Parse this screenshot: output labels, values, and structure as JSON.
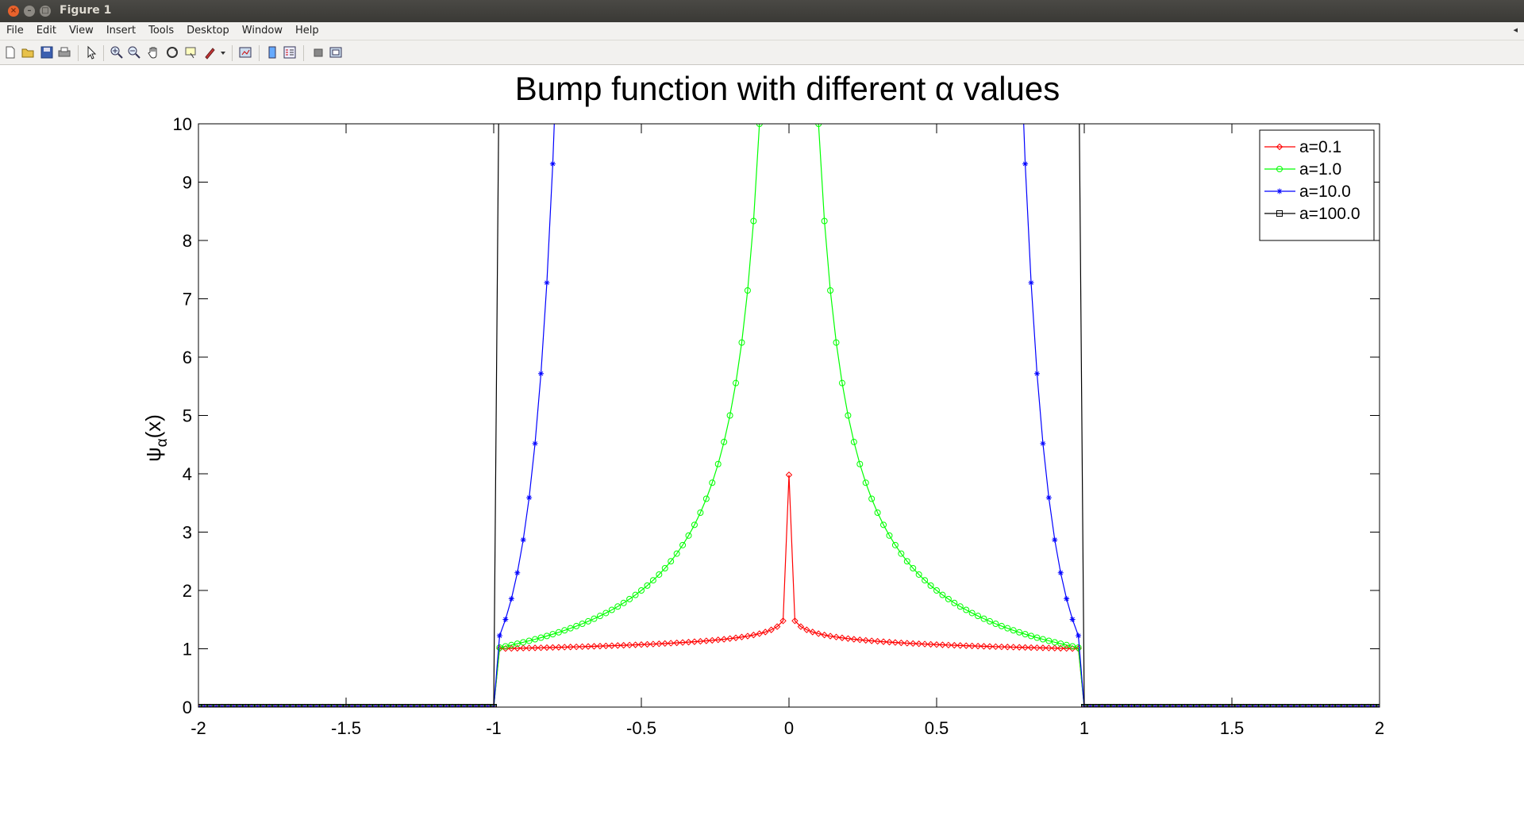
{
  "window": {
    "title": "Figure 1"
  },
  "menu": [
    "File",
    "Edit",
    "View",
    "Insert",
    "Tools",
    "Desktop",
    "Window",
    "Help"
  ],
  "toolbar_icons": [
    "new-figure-icon",
    "open-file-icon",
    "save-icon",
    "print-icon",
    "select-arrow-icon",
    "zoom-in-icon",
    "zoom-out-icon",
    "pan-icon",
    "rotate-3d-icon",
    "data-cursor-icon",
    "brush-icon",
    "link-plot-icon",
    "colorbar-icon",
    "legend-icon",
    "hide-plot-tools-icon",
    "show-plot-tools-icon"
  ],
  "chart_data": {
    "type": "line",
    "title": "Bump function with different α values",
    "ylabel_main": "ψ",
    "ylabel_sub": "α",
    "ylabel_tail": "(x)",
    "xlabel": "",
    "xlim": [
      -2,
      2
    ],
    "ylim": [
      0,
      10
    ],
    "x_ticks": [
      -2,
      -1.5,
      -1,
      -0.5,
      0,
      0.5,
      1,
      1.5,
      2
    ],
    "x_tick_labels": [
      "-2",
      "-1.5",
      "-1",
      "-0.5",
      "0",
      "0.5",
      "1",
      "1.5",
      "2"
    ],
    "y_ticks": [
      0,
      1,
      2,
      3,
      4,
      5,
      6,
      7,
      8,
      9,
      10
    ],
    "y_tick_labels": [
      "0",
      "1",
      "2",
      "3",
      "4",
      "5",
      "6",
      "7",
      "8",
      "9",
      "10"
    ],
    "grid": false,
    "legend_position": "top-right",
    "series": [
      {
        "name": "a=0.1",
        "alpha": 0.1,
        "color": "#ff0000",
        "marker": "diamond"
      },
      {
        "name": "a=1.0",
        "alpha": 1.0,
        "color": "#00ff00",
        "marker": "circle"
      },
      {
        "name": "a=10.0",
        "alpha": 10.0,
        "color": "#0000ff",
        "marker": "star"
      },
      {
        "name": "a=100.0",
        "alpha": 100.0,
        "color": "#000000",
        "marker": "square"
      }
    ],
    "sample_points": 201
  }
}
